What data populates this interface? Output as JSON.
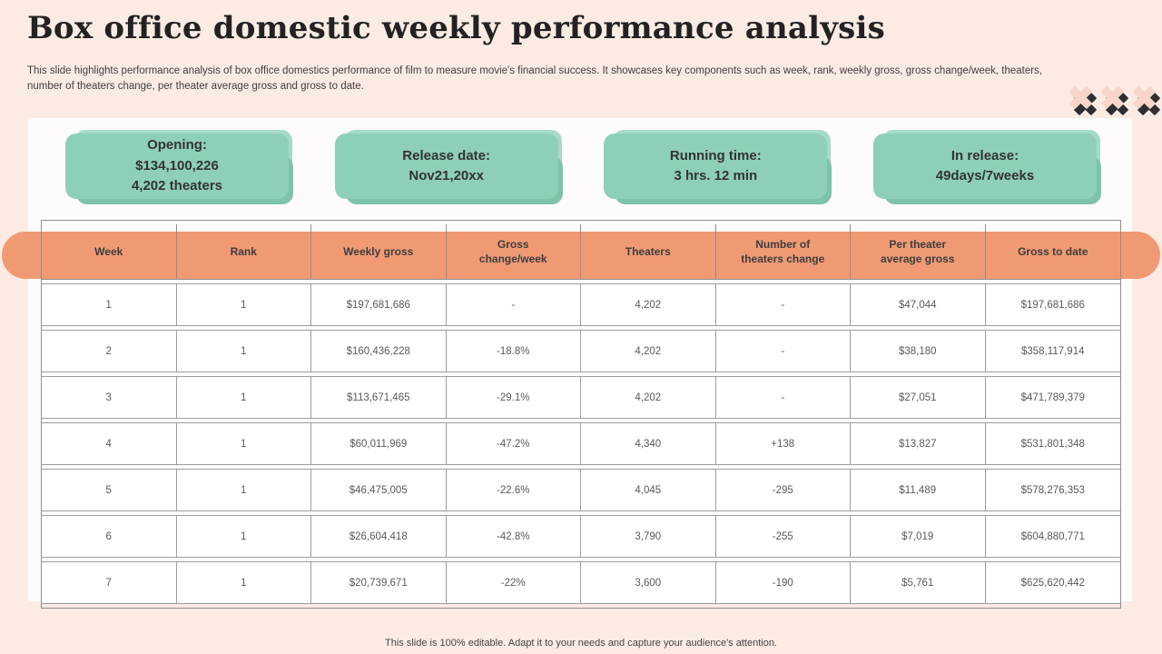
{
  "slide": {
    "title": "Box office domestic weekly performance analysis",
    "subtitle_lines": [
      "This slide highlights performance analysis of box office domestics performance of film to measure movie's financial success. It showcases key components such as week, rank, weekly gross, gross change/week, theaters,",
      "number of theaters change, per theater average gross and gross to date."
    ],
    "stats": [
      {
        "heading": "Opening:",
        "lines": [
          "$134,100,226",
          "4,202 theaters"
        ]
      },
      {
        "heading": "Release date:",
        "lines": [
          "Nov21,20xx"
        ]
      },
      {
        "heading": "Running time:",
        "lines": [
          "3 hrs. 12 min"
        ]
      },
      {
        "heading": "In release:",
        "lines": [
          "49days/7weeks"
        ]
      }
    ],
    "decoration": {
      "x_icon_count": 3
    },
    "footer": "This slide is 100% editable. Adapt it to your needs and capture your audience's attention.",
    "colors": {
      "background": "#fcebe3",
      "panel": "#fefcfa",
      "accent_orange": "#f09a74",
      "accent_green": "#8ed0b5",
      "green_dark": "#7cc3a7",
      "green_light": "#a6dbc6",
      "icon_dark": "#2e2d31",
      "icon_pink": "#f6d6c8"
    }
  },
  "chart_data": {
    "type": "table",
    "title": "Box office domestic weekly performance analysis",
    "headers": [
      "Week",
      "Rank",
      "Weekly gross",
      "Gross change/week",
      "Theaters",
      "Number of theaters change",
      "Per theater average gross",
      "Gross to date"
    ],
    "rows": [
      [
        1,
        1,
        "$197,681,686",
        "-",
        "4,202",
        "-",
        "$47,044",
        "$197,681,686"
      ],
      [
        2,
        1,
        "$160,436,228",
        "-18.8%",
        "4,202",
        "-",
        "$38,180",
        "$358,117,914"
      ],
      [
        3,
        1,
        "$113,671,465",
        "-29.1%",
        "4,202",
        "-",
        "$27,051",
        "$471,789,379"
      ],
      [
        4,
        1,
        "$60,011,969",
        "-47.2%",
        "4,340",
        "+138",
        "$13,827",
        "$531,801,348"
      ],
      [
        5,
        1,
        "$46,475,005",
        "-22.6%",
        "4,045",
        "-295",
        "$11,489",
        "$578,276,353"
      ],
      [
        6,
        1,
        "$26,604,418",
        "-42.8%",
        "3,790",
        "-255",
        "$7,019",
        "$604,880,771"
      ],
      [
        7,
        1,
        "$20,739,671",
        "-22%",
        "3,600",
        "-190",
        "$5,761",
        "$625,620,442"
      ]
    ]
  }
}
